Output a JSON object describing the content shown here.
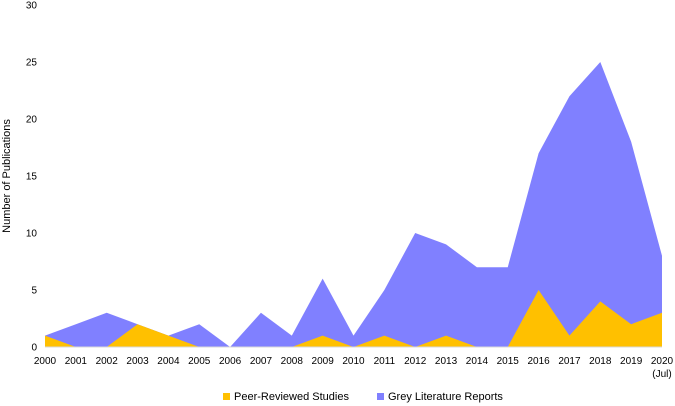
{
  "chart_data": {
    "type": "area",
    "stacking": "overlapping",
    "x": [
      "2000",
      "2001",
      "2002",
      "2003",
      "2004",
      "2005",
      "2006",
      "2007",
      "2008",
      "2009",
      "2010",
      "2011",
      "2012",
      "2013",
      "2014",
      "2015",
      "2016",
      "2017",
      "2018",
      "2019",
      "2020"
    ],
    "x_tick_labels": [
      "2000",
      "2001",
      "2002",
      "2003",
      "2004",
      "2005",
      "2006",
      "2007",
      "2008",
      "2009",
      "2010",
      "2011",
      "2012",
      "2013",
      "2014",
      "2015",
      "2016",
      "2017",
      "2018",
      "2019",
      "2020"
    ],
    "x_last_sublabel": "(Jul)",
    "ylabel": "Number of Publications",
    "ylim": [
      0,
      30
    ],
    "yticks": [
      0,
      5,
      10,
      15,
      20,
      25,
      30
    ],
    "grid": false,
    "legend_position": "bottom",
    "series": [
      {
        "name": "Grey Literature Reports",
        "color": "#8080FF",
        "values": [
          1,
          2,
          3,
          2,
          1,
          2,
          0,
          3,
          1,
          6,
          1,
          5,
          10,
          9,
          7,
          7,
          17,
          22,
          25,
          18,
          8
        ]
      },
      {
        "name": "Peer-Reviewed Studies",
        "color": "#FFC000",
        "values": [
          1,
          0,
          0,
          2,
          1,
          0,
          0,
          0,
          0,
          1,
          0,
          1,
          0,
          1,
          0,
          0,
          5,
          1,
          4,
          2,
          3
        ]
      }
    ],
    "legend_order": [
      "Peer-Reviewed Studies",
      "Grey Literature Reports"
    ]
  }
}
